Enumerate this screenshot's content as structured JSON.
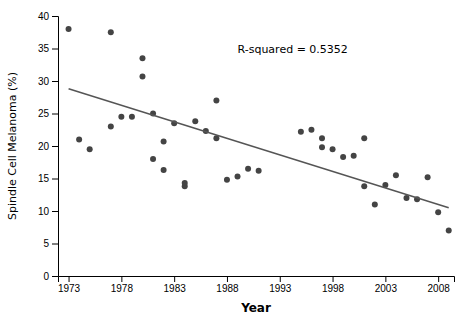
{
  "chart_data": {
    "type": "scatter",
    "xlabel": "Year",
    "ylabel": "Spindle Cell Melanoma (%)",
    "series": [
      {
        "type": "scatter",
        "color": "#444444",
        "x": [
          1973,
          1974,
          1975,
          1977,
          1977,
          1978,
          1979,
          1980,
          1980,
          1981,
          1981,
          1982,
          1982,
          1983,
          1984,
          1984,
          1985,
          1986,
          1987,
          1987,
          1988,
          1989,
          1990,
          1991,
          1995,
          1996,
          1997,
          1997,
          1998,
          1999,
          2000,
          2001,
          2001,
          2002,
          2003,
          2004,
          2005,
          2006,
          2007,
          2008,
          2009
        ],
        "values": [
          38.0,
          21.0,
          19.5,
          23.0,
          37.5,
          24.5,
          24.5,
          33.5,
          30.7,
          25.0,
          18.0,
          20.7,
          16.3,
          23.5,
          13.8,
          14.3,
          23.8,
          22.3,
          21.2,
          27.0,
          14.8,
          15.3,
          16.5,
          16.2,
          22.2,
          22.5,
          19.8,
          21.2,
          19.5,
          18.3,
          18.5,
          13.8,
          21.2,
          11.0,
          14.0,
          15.5,
          12.0,
          11.8,
          15.2,
          9.8,
          7.0
        ]
      },
      {
        "type": "line",
        "color": "#555555",
        "x": [
          1973,
          2009
        ],
        "values": [
          28.8,
          10.5
        ]
      }
    ],
    "annotations": [
      {
        "text": "R-squared = 0.5352",
        "x": 1989,
        "y": 35.5
      }
    ],
    "xlim": [
      1972,
      2009.5
    ],
    "ylim": [
      0,
      40
    ],
    "xticks": [
      1973,
      1978,
      1983,
      1988,
      1993,
      1998,
      2003,
      2008
    ],
    "yticks": [
      0,
      5,
      10,
      15,
      20,
      25,
      30,
      35,
      40
    ],
    "grid": false
  }
}
